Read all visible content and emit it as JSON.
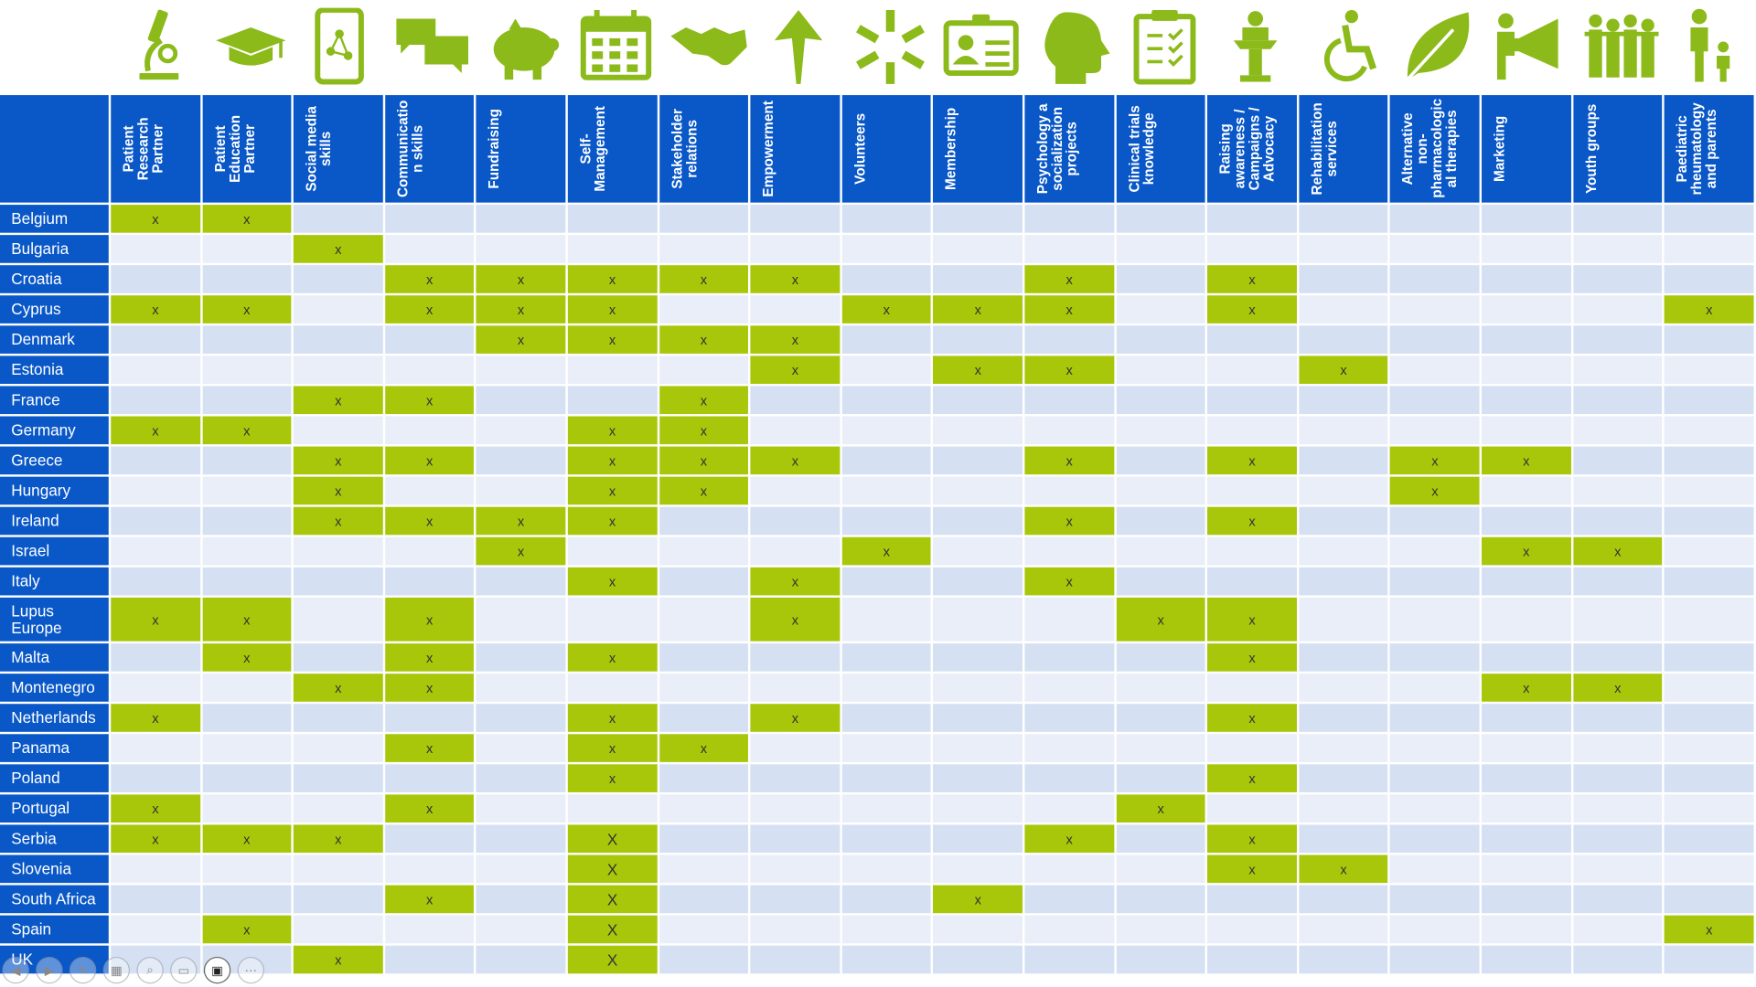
{
  "colors": {
    "header_blue": "#0a58c8",
    "icon_green": "#8cba1a",
    "cell_green": "#a9c70a",
    "row_light": "#e9eef8",
    "row_dark": "#d5e0f2"
  },
  "icons": [
    "microscope-icon",
    "graduation-cap-icon",
    "phone-network-icon",
    "chat-bubbles-icon",
    "piggy-bank-icon",
    "calendar-icon",
    "handshake-icon",
    "arrow-up-icon",
    "hands-circle-icon",
    "id-card-icon",
    "head-puzzle-icon",
    "clipboard-checklist-icon",
    "speaker-podium-icon",
    "wheelchair-icon",
    "leaf-icon",
    "megaphone-icon",
    "group-people-icon",
    "parent-child-icon"
  ],
  "columns": [
    "Patient\nResearch\nPartner",
    "Patient\nEducation\nPartner",
    "Social media\nskills",
    "Communicatio\nn skills",
    "Fundraising",
    "Self-\nManagement",
    "Stakeholder\nrelations",
    "Empowerment",
    "Volunteers",
    "Membership",
    "Psychology a\nsocialization\nprojects",
    "Clinical trials\nknowledge",
    "Raising\nawareness /\nCampaigns /\nAdvocacy",
    "Rehabilitation\nservices",
    "Alternative\nnon-\npharmacologic\nal therapies",
    "Marketing",
    "Youth groups",
    "Paediatric\nrheumatology\nand parents"
  ],
  "rows": [
    {
      "country": "Belgium",
      "marks": [
        "x",
        "x",
        "",
        "",
        "",
        "",
        "",
        "",
        "",
        "",
        "",
        "",
        "",
        "",
        "",
        "",
        "",
        ""
      ]
    },
    {
      "country": "Bulgaria",
      "marks": [
        "",
        "",
        "x",
        "",
        "",
        "",
        "",
        "",
        "",
        "",
        "",
        "",
        "",
        "",
        "",
        "",
        "",
        ""
      ]
    },
    {
      "country": "Croatia",
      "marks": [
        "",
        "",
        "",
        "x",
        "x",
        "x",
        "x",
        "x",
        "",
        "",
        "x",
        "",
        "x",
        "",
        "",
        "",
        "",
        ""
      ]
    },
    {
      "country": "Cyprus",
      "marks": [
        "x",
        "x",
        "",
        "x",
        "x",
        "x",
        "",
        "",
        "x",
        "x",
        "x",
        "",
        "x",
        "",
        "",
        "",
        "",
        "x"
      ]
    },
    {
      "country": "Denmark",
      "marks": [
        "",
        "",
        "",
        "",
        "x",
        "x",
        "x",
        "x",
        "",
        "",
        "",
        "",
        "",
        "",
        "",
        "",
        "",
        ""
      ]
    },
    {
      "country": "Estonia",
      "marks": [
        "",
        "",
        "",
        "",
        "",
        "",
        "",
        "x",
        "",
        "x",
        "x",
        "",
        "",
        "x",
        "",
        "",
        "",
        ""
      ]
    },
    {
      "country": "France",
      "marks": [
        "",
        "",
        "x",
        "x",
        "",
        "",
        "x",
        "",
        "",
        "",
        "",
        "",
        "",
        "",
        "",
        "",
        "",
        ""
      ]
    },
    {
      "country": "Germany",
      "marks": [
        "x",
        "x",
        "",
        "",
        "",
        "x",
        "x",
        "",
        "",
        "",
        "",
        "",
        "",
        "",
        "",
        "",
        "",
        ""
      ]
    },
    {
      "country": "Greece",
      "marks": [
        "",
        "",
        "x",
        "x",
        "",
        "x",
        "x",
        "x",
        "",
        "",
        "x",
        "",
        "x",
        "",
        "x",
        "x",
        "",
        ""
      ]
    },
    {
      "country": "Hungary",
      "marks": [
        "",
        "",
        "x",
        "",
        "",
        "x",
        "x",
        "",
        "",
        "",
        "",
        "",
        "",
        "",
        "x",
        "",
        "",
        ""
      ]
    },
    {
      "country": "Ireland",
      "marks": [
        "",
        "",
        "x",
        "x",
        "x",
        "x",
        "",
        "",
        "",
        "",
        "x",
        "",
        "x",
        "",
        "",
        "",
        "",
        ""
      ]
    },
    {
      "country": "Israel",
      "marks": [
        "",
        "",
        "",
        "",
        "x",
        "",
        "",
        "",
        "x",
        "",
        "",
        "",
        "",
        "",
        "",
        "x",
        "x",
        ""
      ]
    },
    {
      "country": "Italy",
      "marks": [
        "",
        "",
        "",
        "",
        "",
        "x",
        "",
        "x",
        "",
        "",
        "x",
        "",
        "",
        "",
        "",
        "",
        "",
        ""
      ]
    },
    {
      "country": "Lupus\nEurope",
      "marks": [
        "x",
        "x",
        "",
        "x",
        "",
        "",
        "",
        "x",
        "",
        "",
        "",
        "x",
        "x",
        "",
        "",
        "",
        "",
        ""
      ],
      "tall": true
    },
    {
      "country": "Malta",
      "marks": [
        "",
        "x",
        "",
        "x",
        "",
        "x",
        "",
        "",
        "",
        "",
        "",
        "",
        "x",
        "",
        "",
        "",
        "",
        ""
      ]
    },
    {
      "country": "Montenegro",
      "marks": [
        "",
        "",
        "x",
        "x",
        "",
        "",
        "",
        "",
        "",
        "",
        "",
        "",
        "",
        "",
        "",
        "x",
        "x",
        ""
      ]
    },
    {
      "country": "Netherlands",
      "marks": [
        "x",
        "",
        "",
        "",
        "",
        "x",
        "",
        "x",
        "",
        "",
        "",
        "",
        "x",
        "",
        "",
        "",
        "",
        ""
      ]
    },
    {
      "country": "Panama",
      "marks": [
        "",
        "",
        "",
        "x",
        "",
        "x",
        "x",
        "",
        "",
        "",
        "",
        "",
        "",
        "",
        "",
        "",
        "",
        ""
      ]
    },
    {
      "country": "Poland",
      "marks": [
        "",
        "",
        "",
        "",
        "",
        "x",
        "",
        "",
        "",
        "",
        "",
        "",
        "x",
        "",
        "",
        "",
        "",
        ""
      ]
    },
    {
      "country": "Portugal",
      "marks": [
        "x",
        "",
        "",
        "x",
        "",
        "",
        "",
        "",
        "",
        "",
        "",
        "x",
        "",
        "",
        "",
        "",
        "",
        ""
      ]
    },
    {
      "country": "Serbia",
      "marks": [
        "x",
        "x",
        "x",
        "",
        "",
        "X",
        "",
        "",
        "",
        "",
        "x",
        "",
        "x",
        "",
        "",
        "",
        "",
        ""
      ]
    },
    {
      "country": "Slovenia",
      "marks": [
        "",
        "",
        "",
        "",
        "",
        "X",
        "",
        "",
        "",
        "",
        "",
        "",
        "x",
        "x",
        "",
        "",
        "",
        ""
      ]
    },
    {
      "country": "South Africa",
      "marks": [
        "",
        "",
        "",
        "x",
        "",
        "X",
        "",
        "",
        "",
        "x",
        "",
        "",
        "",
        "",
        "",
        "",
        "",
        ""
      ]
    },
    {
      "country": "Spain",
      "marks": [
        "",
        "x",
        "",
        "",
        "",
        "X",
        "",
        "",
        "",
        "",
        "",
        "",
        "",
        "",
        "",
        "",
        "",
        "x"
      ]
    },
    {
      "country": "UK",
      "marks": [
        "",
        "",
        "x",
        "",
        "",
        "X",
        "",
        "",
        "",
        "",
        "",
        "",
        "",
        "",
        "",
        "",
        "",
        ""
      ]
    }
  ],
  "toolbar": [
    "previous-slide-icon",
    "next-slide-icon",
    "pen-icon",
    "slides-overview-icon",
    "zoom-icon",
    "subtitles-icon",
    "camera-icon",
    "more-options-icon"
  ]
}
